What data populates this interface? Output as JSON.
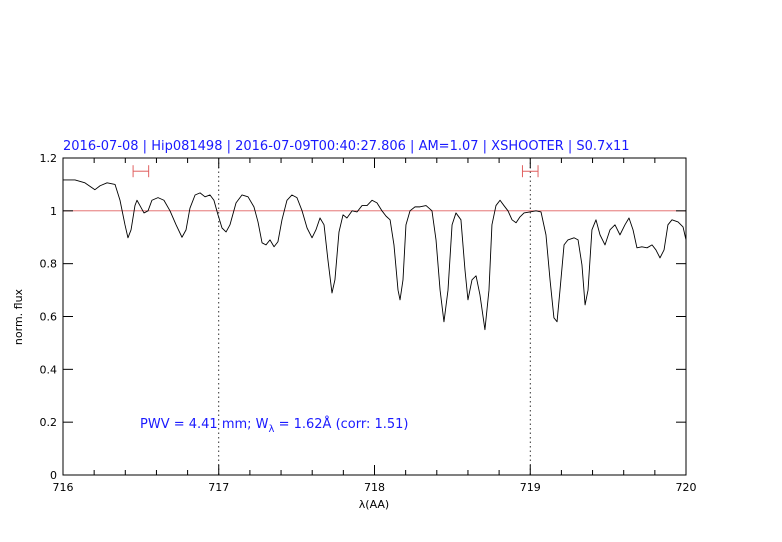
{
  "chart_data": {
    "type": "line",
    "title": "2016-07-08 | Hip081498 | 2016-07-09T00:40:27.806 | AM=1.07 | XSHOOTER | S0.7x11",
    "annotation": [
      "PWV = 4.41 mm; W",
      "λ",
      " = 1.62Å (corr: 1.51)"
    ],
    "x_label": "λ(AA)",
    "y_label": "norm. flux",
    "xlim": [
      716,
      720
    ],
    "ylim": [
      0,
      1.2
    ],
    "xticks": [
      716,
      717,
      718,
      719,
      720
    ],
    "xminorticks": [
      716.2,
      716.4,
      716.6,
      716.8,
      717.2,
      717.4,
      717.6,
      717.8,
      718.2,
      718.4,
      718.6,
      718.8,
      719.2,
      719.4,
      719.6,
      719.8
    ],
    "yticks": [
      0,
      0.2,
      0.4,
      0.6,
      0.8,
      1,
      1.2
    ],
    "hline": 1,
    "hline_color": "#e06060",
    "vlines": [
      717,
      719
    ],
    "intervals": [
      [
        716.45,
        716.55
      ],
      [
        718.95,
        719.05
      ]
    ],
    "interval_y": 1.15,
    "interval_color": "#e06060",
    "series": [
      {
        "name": "flux",
        "color": "#000000",
        "x": [
          716.0,
          716.077,
          716.141,
          716.205,
          716.238,
          716.283,
          716.334,
          716.366,
          716.398,
          716.417,
          716.437,
          716.462,
          716.475,
          716.494,
          716.52,
          716.546,
          716.571,
          716.61,
          716.648,
          716.687,
          716.726,
          716.764,
          716.79,
          716.815,
          716.848,
          716.88,
          716.912,
          716.944,
          716.969,
          716.995,
          717.021,
          717.047,
          717.072,
          717.111,
          717.149,
          717.188,
          717.226,
          717.252,
          717.278,
          717.303,
          717.329,
          717.355,
          717.38,
          717.406,
          717.438,
          717.47,
          717.502,
          717.535,
          717.567,
          717.599,
          717.624,
          717.65,
          717.676,
          717.701,
          717.727,
          717.746,
          717.772,
          717.798,
          717.823,
          717.856,
          717.888,
          717.92,
          717.952,
          717.984,
          718.016,
          718.048,
          718.074,
          718.1,
          718.125,
          718.151,
          718.164,
          718.183,
          718.202,
          718.228,
          718.26,
          718.292,
          718.331,
          718.369,
          718.395,
          718.421,
          718.446,
          718.472,
          718.498,
          718.523,
          718.555,
          718.581,
          718.6,
          718.626,
          718.652,
          718.677,
          718.709,
          718.735,
          718.754,
          718.78,
          718.806,
          718.831,
          718.857,
          718.883,
          718.909,
          718.934,
          718.96,
          718.998,
          719.037,
          719.069,
          719.101,
          719.127,
          719.152,
          719.172,
          719.191,
          719.217,
          719.242,
          719.281,
          719.307,
          719.332,
          719.352,
          719.371,
          719.396,
          719.422,
          719.448,
          719.48,
          719.512,
          719.544,
          719.576,
          719.608,
          719.634,
          719.66,
          719.685,
          719.717,
          719.75,
          719.782,
          719.807,
          719.833,
          719.859,
          719.884,
          719.91,
          719.949,
          719.981,
          720.0
        ],
        "values": [
          1.117,
          1.117,
          1.106,
          1.08,
          1.095,
          1.106,
          1.1,
          1.04,
          0.947,
          0.898,
          0.928,
          1.02,
          1.04,
          1.02,
          0.992,
          1.0,
          1.04,
          1.05,
          1.04,
          1.0,
          0.947,
          0.9,
          0.928,
          1.01,
          1.06,
          1.068,
          1.053,
          1.06,
          1.04,
          0.985,
          0.935,
          0.92,
          0.947,
          1.03,
          1.06,
          1.053,
          1.015,
          0.958,
          0.879,
          0.871,
          0.89,
          0.864,
          0.883,
          0.966,
          1.04,
          1.06,
          1.05,
          1.0,
          0.935,
          0.898,
          0.928,
          0.973,
          0.947,
          0.814,
          0.689,
          0.739,
          0.92,
          0.985,
          0.973,
          1.0,
          0.996,
          1.02,
          1.02,
          1.04,
          1.03,
          1.0,
          0.98,
          0.966,
          0.871,
          0.7,
          0.663,
          0.739,
          0.947,
          1.0,
          1.015,
          1.015,
          1.02,
          1.0,
          0.89,
          0.7,
          0.58,
          0.7,
          0.947,
          0.992,
          0.966,
          0.776,
          0.663,
          0.739,
          0.754,
          0.682,
          0.55,
          0.7,
          0.947,
          1.02,
          1.04,
          1.02,
          1.0,
          0.966,
          0.955,
          0.977,
          0.992,
          0.996,
          1.0,
          0.996,
          0.909,
          0.739,
          0.595,
          0.58,
          0.7,
          0.871,
          0.89,
          0.898,
          0.89,
          0.795,
          0.644,
          0.7,
          0.928,
          0.966,
          0.909,
          0.871,
          0.928,
          0.947,
          0.909,
          0.947,
          0.973,
          0.928,
          0.86,
          0.864,
          0.86,
          0.871,
          0.852,
          0.822,
          0.852,
          0.947,
          0.966,
          0.958,
          0.939,
          0.89
        ]
      }
    ]
  }
}
